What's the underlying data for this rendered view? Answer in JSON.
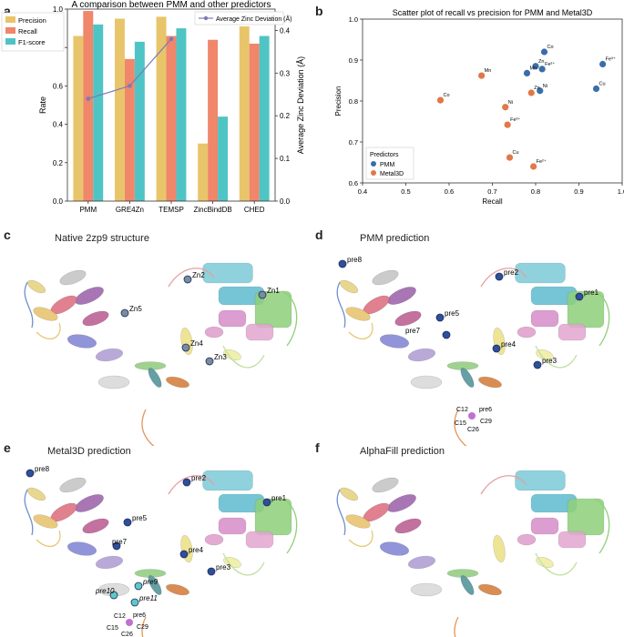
{
  "panels": {
    "a": "a",
    "b": "b",
    "c": "c",
    "d": "d",
    "e": "e",
    "f": "f"
  },
  "chart_data": [
    {
      "type": "bar",
      "title": "A comparison between PMM and other predictors",
      "ylabel": "Rate",
      "y2label": "Average Zinc Deviation (Å)",
      "ylim": [
        0,
        1.0
      ],
      "y2lim": [
        0,
        0.45
      ],
      "yticks": [
        "0.0",
        "0.2",
        "0.4",
        "0.6",
        "0.8",
        "1.0"
      ],
      "y2ticks": [
        "0.0",
        "0.1",
        "0.2",
        "0.3",
        "0.4"
      ],
      "categories": [
        "PMM",
        "GRE4Zn",
        "TEMSP",
        "ZincBindDB",
        "CHED"
      ],
      "series": [
        {
          "name": "Precision",
          "color": "#e8c56a",
          "values": [
            0.86,
            0.95,
            0.96,
            0.3,
            0.91
          ]
        },
        {
          "name": "Recall",
          "color": "#f0866a",
          "values": [
            0.99,
            0.74,
            0.86,
            0.84,
            0.82
          ]
        },
        {
          "name": "F1-score",
          "color": "#4fc4c4",
          "values": [
            0.92,
            0.83,
            0.9,
            0.44,
            0.86
          ]
        }
      ],
      "line": {
        "name": "Average Zinc Deviation (Å)",
        "color": "#7a7ab8",
        "values": [
          0.24,
          0.27,
          0.38
        ]
      }
    },
    {
      "type": "scatter",
      "title": "Scatter plot of recall vs precision for PMM and Metal3D",
      "xlabel": "Recall",
      "ylabel": "Precision",
      "xlim": [
        0.4,
        1.0
      ],
      "ylim": [
        0.6,
        1.0
      ],
      "xticks": [
        "0.4",
        "0.5",
        "0.6",
        "0.7",
        "0.8",
        "0.9",
        "1.0"
      ],
      "yticks": [
        "0.6",
        "0.7",
        "0.8",
        "0.9",
        "1.0"
      ],
      "legend_title": "Predictors",
      "series": [
        {
          "name": "PMM",
          "color": "#3a6eaa",
          "points": [
            {
              "x": 0.82,
              "y": 0.92,
              "label": "Co"
            },
            {
              "x": 0.8,
              "y": 0.885,
              "label": "Zn"
            },
            {
              "x": 0.815,
              "y": 0.878,
              "label": "Fe²⁺"
            },
            {
              "x": 0.78,
              "y": 0.868,
              "label": "Mn"
            },
            {
              "x": 0.81,
              "y": 0.825,
              "label": "Ni"
            },
            {
              "x": 0.955,
              "y": 0.89,
              "label": "Fe³⁺"
            },
            {
              "x": 0.94,
              "y": 0.83,
              "label": "Cu"
            }
          ]
        },
        {
          "name": "Metal3D",
          "color": "#e07848",
          "points": [
            {
              "x": 0.675,
              "y": 0.862,
              "label": "Mn"
            },
            {
              "x": 0.58,
              "y": 0.802,
              "label": "Co"
            },
            {
              "x": 0.79,
              "y": 0.82,
              "label": "Zn"
            },
            {
              "x": 0.73,
              "y": 0.785,
              "label": "Ni"
            },
            {
              "x": 0.735,
              "y": 0.742,
              "label": "Fe³⁺"
            },
            {
              "x": 0.74,
              "y": 0.662,
              "label": "Cu"
            },
            {
              "x": 0.795,
              "y": 0.64,
              "label": "Fe²⁺"
            }
          ]
        }
      ]
    }
  ],
  "structures": {
    "c": {
      "title": "Native 2zp9 structure",
      "labels": [
        "Zn2",
        "Zn1",
        "Zn5",
        "Zn4",
        "Zn3"
      ]
    },
    "d": {
      "title": "PMM prediction",
      "labels": [
        "pre8",
        "pre2",
        "pre1",
        "pre5",
        "pre7",
        "pre4",
        "pre3",
        "C12",
        "pre6",
        "C29",
        "C15",
        "C26"
      ]
    },
    "e": {
      "title": "Metal3D prediction",
      "labels": [
        "pre8",
        "pre2",
        "pre1",
        "pre5",
        "pre7",
        "pre4",
        "pre3",
        "pre9",
        "pre10",
        "pre11",
        "C12",
        "pre6",
        "C29",
        "C15",
        "C26"
      ]
    },
    "f": {
      "title": "AlphaFill prediction",
      "labels": []
    }
  }
}
